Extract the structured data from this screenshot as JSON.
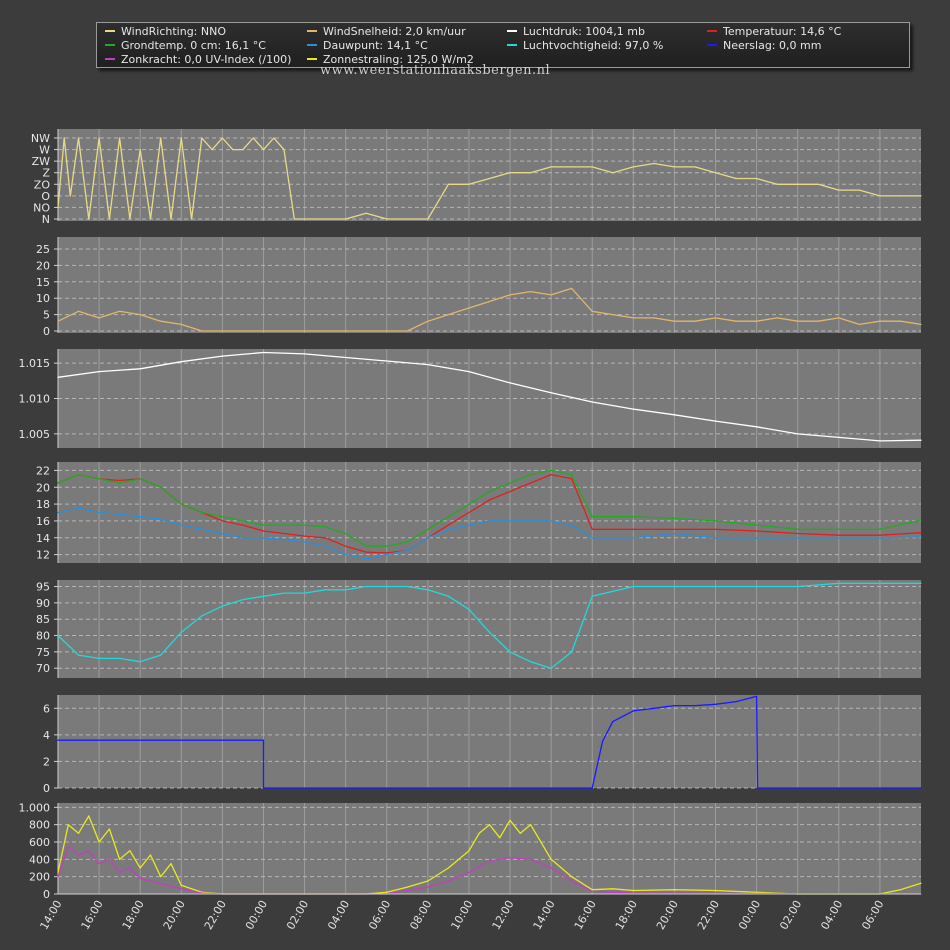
{
  "legend": {
    "items": [
      {
        "label": "WindRichting: NNO",
        "color": "#e8d98a"
      },
      {
        "label": "WindSnelheid: 2,0 km/uur",
        "color": "#e3b56a"
      },
      {
        "label": "Luchtdruk: 1004,1 mb",
        "color": "#ffffff"
      },
      {
        "label": "Temperatuur: 14,6 °C",
        "color": "#e02020"
      },
      {
        "label": "Grondtemp. 0 cm: 16,1 °C",
        "color": "#22aa22"
      },
      {
        "label": "Dauwpunt: 14,1 °C",
        "color": "#2a8fd8"
      },
      {
        "label": "Luchtvochtigheid: 97,0 %",
        "color": "#22d8d8"
      },
      {
        "label": "Neerslag: 0,0 mm",
        "color": "#1a1aff"
      },
      {
        "label": "Zonkracht: 0,0 UV-Index (/100)",
        "color": "#c040c0"
      },
      {
        "label": "Zonnestraling: 125,0 W/m2",
        "color": "#e8e820"
      }
    ]
  },
  "site_url": "www.weerstationhaaksbergen.nl",
  "chart_data": {
    "type": "line",
    "x_hours_from": 14,
    "x_span_hours": 42,
    "x_tick_labels": [
      "14:00",
      "16:00",
      "18:00",
      "20:00",
      "22:00",
      "00:00",
      "02:00",
      "04:00",
      "06:00",
      "08:00",
      "10:00",
      "12:00",
      "14:00",
      "16:00",
      "18:00",
      "20:00",
      "22:00",
      "00:00",
      "02:00",
      "04:00",
      "06:00"
    ],
    "panels": [
      {
        "name": "wind-direction",
        "ticks": [
          "NW",
          "W",
          "ZW",
          "Z",
          "ZO",
          "O",
          "NO",
          "N"
        ],
        "ylim": [
          0,
          7
        ],
        "series": [
          {
            "name": "WindRichting",
            "color": "#e8d98a",
            "x": [
              0,
              0.3,
              0.6,
              1,
              1.5,
              2,
              2.5,
              3,
              3.5,
              4,
              4.5,
              5,
              5.5,
              6,
              6.5,
              7,
              7.5,
              8,
              8.5,
              9,
              9.5,
              10,
              10.5,
              11,
              11.5,
              12,
              13,
              14,
              15,
              16,
              17,
              18,
              19,
              20,
              21,
              22,
              23,
              24,
              25,
              26,
              27,
              28,
              29,
              30,
              31,
              32,
              33,
              34,
              35,
              36,
              37,
              38,
              39,
              40,
              41,
              42
            ],
            "y": [
              1,
              7,
              2,
              7,
              0,
              7,
              0,
              7,
              0,
              6,
              0,
              7,
              0,
              7,
              0,
              7,
              6,
              7,
              6,
              6,
              7,
              6,
              7,
              6,
              0,
              0,
              0,
              0,
              0.5,
              0,
              0,
              0,
              3,
              3,
              3.5,
              4,
              4,
              4.5,
              4.5,
              4.5,
              4,
              4.5,
              4.8,
              4.5,
              4.5,
              4,
              3.5,
              3.5,
              3,
              3,
              3,
              2.5,
              2.5,
              2,
              2,
              2
            ]
          }
        ]
      },
      {
        "name": "wind-speed",
        "ticks": [
          "0",
          "5",
          "10",
          "15",
          "20",
          "25"
        ],
        "ylim": [
          0,
          25
        ],
        "series": [
          {
            "name": "WindSnelheid",
            "color": "#e3b56a",
            "x": [
              0,
              1,
              2,
              3,
              4,
              5,
              6,
              7,
              8,
              9,
              10,
              11,
              12,
              13,
              14,
              15,
              16,
              17,
              18,
              19,
              20,
              21,
              22,
              23,
              24,
              25,
              26,
              27,
              28,
              29,
              30,
              31,
              32,
              33,
              34,
              35,
              36,
              37,
              38,
              39,
              40,
              41,
              42
            ],
            "y": [
              3,
              6,
              4,
              6,
              5,
              3,
              2,
              0,
              0,
              0,
              0,
              0,
              0,
              0,
              0,
              0,
              0,
              0,
              3,
              5,
              7,
              9,
              11,
              12,
              11,
              13,
              6,
              5,
              4,
              4,
              3,
              3,
              4,
              3,
              3,
              4,
              3,
              3,
              4,
              2,
              3,
              3,
              2
            ]
          }
        ]
      },
      {
        "name": "pressure",
        "ticks": [
          "1.005",
          "1.010",
          "1.015"
        ],
        "ylim": [
          1.003,
          1.017
        ],
        "series": [
          {
            "name": "Luchtdruk",
            "color": "#ffffff",
            "x": [
              0,
              2,
              4,
              6,
              8,
              10,
              12,
              14,
              16,
              18,
              20,
              22,
              24,
              26,
              28,
              30,
              32,
              34,
              36,
              38,
              40,
              42
            ],
            "y": [
              1.013,
              1.0138,
              1.0142,
              1.0152,
              1.016,
              1.0165,
              1.0163,
              1.0158,
              1.0153,
              1.0148,
              1.0138,
              1.0122,
              1.0108,
              1.0095,
              1.0085,
              1.0077,
              1.0068,
              1.006,
              1.005,
              1.0045,
              1.004,
              1.0041
            ]
          }
        ]
      },
      {
        "name": "temperature",
        "ticks": [
          "12",
          "14",
          "16",
          "18",
          "20",
          "22"
        ],
        "ylim": [
          11,
          23
        ],
        "series": [
          {
            "name": "Temperatuur",
            "color": "#e02020",
            "x": [
              0,
              1,
              2,
              3,
              4,
              5,
              6,
              7,
              8,
              9,
              10,
              11,
              12,
              13,
              14,
              15,
              16,
              17,
              18,
              19,
              20,
              21,
              22,
              23,
              24,
              25,
              26,
              28,
              30,
              32,
              34,
              36,
              38,
              40,
              42
            ],
            "y": [
              20.5,
              21.5,
              21,
              20.8,
              21,
              20,
              18,
              17,
              16,
              15.5,
              14.8,
              14.5,
              14.2,
              14,
              13,
              12.3,
              12.2,
              12.5,
              14,
              15.5,
              17,
              18.5,
              19.5,
              20.5,
              21.5,
              21,
              15,
              15,
              15,
              15,
              14.8,
              14.5,
              14.3,
              14.3,
              14.6
            ]
          },
          {
            "name": "Grondtemp",
            "color": "#22aa22",
            "x": [
              0,
              1,
              2,
              3,
              4,
              5,
              6,
              7,
              8,
              9,
              10,
              11,
              12,
              13,
              14,
              15,
              16,
              17,
              18,
              19,
              20,
              21,
              22,
              23,
              24,
              25,
              26,
              28,
              30,
              32,
              34,
              36,
              38,
              40,
              42
            ],
            "y": [
              20.5,
              21.5,
              21,
              20.5,
              21,
              20,
              18,
              17,
              16.5,
              16,
              15.5,
              15.5,
              15.5,
              15.3,
              14.5,
              13,
              13,
              13.5,
              15,
              16.5,
              18,
              19.5,
              20.5,
              21.5,
              22,
              21.5,
              16.5,
              16.5,
              16.3,
              16,
              15.5,
              15,
              15,
              15,
              16.1
            ]
          },
          {
            "name": "Dauwpunt",
            "color": "#2a8fd8",
            "x": [
              0,
              1,
              2,
              3,
              4,
              5,
              6,
              7,
              8,
              9,
              10,
              11,
              12,
              13,
              14,
              15,
              16,
              17,
              18,
              19,
              20,
              21,
              22,
              23,
              24,
              25,
              26,
              28,
              30,
              32,
              34,
              36,
              38,
              40,
              42
            ],
            "y": [
              17,
              17.5,
              17,
              16.8,
              16.5,
              16.2,
              15.5,
              15,
              14.5,
              14,
              14,
              13.8,
              13.5,
              13,
              12,
              11.5,
              12,
              12.5,
              14,
              15,
              15.5,
              16,
              16,
              16,
              16,
              15.5,
              14,
              14,
              14.5,
              14,
              14,
              14,
              14,
              14,
              14.1
            ]
          }
        ]
      },
      {
        "name": "humidity",
        "ticks": [
          "70",
          "75",
          "80",
          "85",
          "90",
          "95"
        ],
        "ylim": [
          67,
          97
        ],
        "series": [
          {
            "name": "Luchtvochtigheid",
            "color": "#22d8d8",
            "x": [
              0,
              1,
              2,
              3,
              4,
              5,
              6,
              7,
              8,
              9,
              10,
              11,
              12,
              13,
              14,
              15,
              16,
              17,
              18,
              19,
              20,
              21,
              22,
              23,
              24,
              25,
              26,
              28,
              30,
              32,
              34,
              36,
              38,
              40,
              42
            ],
            "y": [
              80,
              74,
              73,
              73,
              72,
              74,
              81,
              86,
              89,
              91,
              92,
              93,
              93,
              94,
              94,
              95,
              95,
              95,
              94,
              92,
              88,
              81,
              75,
              72,
              70,
              75,
              92,
              95,
              95,
              95,
              95,
              95,
              96,
              96,
              96
            ]
          }
        ]
      },
      {
        "name": "rain",
        "ticks": [
          "0",
          "2",
          "4",
          "6"
        ],
        "ylim": [
          0,
          7
        ],
        "series": [
          {
            "name": "Neerslag",
            "color": "#1a1aff",
            "x": [
              0,
              10,
              10,
              26,
              26,
              26.5,
              27,
              28,
              29,
              30,
              31,
              32,
              33,
              33.5,
              34,
              34.05,
              42
            ],
            "y": [
              3.6,
              3.6,
              0,
              0,
              0,
              3.5,
              5,
              5.8,
              6,
              6.2,
              6.2,
              6.3,
              6.5,
              6.7,
              6.9,
              0,
              0
            ]
          }
        ]
      },
      {
        "name": "solar",
        "ticks": [
          "0",
          "200",
          "400",
          "600",
          "800",
          "1.000"
        ],
        "ylim": [
          0,
          1050
        ],
        "series": [
          {
            "name": "Zonnestraling",
            "color": "#e8e820",
            "x": [
              0,
              0.5,
              1,
              1.5,
              2,
              2.5,
              3,
              3.5,
              4,
              4.5,
              5,
              5.5,
              6,
              7,
              8,
              10,
              12,
              14,
              15,
              16,
              17,
              18,
              19,
              20,
              20.5,
              21,
              21.5,
              22,
              22.5,
              23,
              23.5,
              24,
              25,
              26,
              27,
              28,
              30,
              32,
              34,
              36,
              38,
              40,
              41,
              42
            ],
            "y": [
              250,
              800,
              700,
              900,
              600,
              750,
              400,
              500,
              300,
              450,
              200,
              350,
              100,
              20,
              0,
              0,
              0,
              0,
              0,
              20,
              80,
              150,
              300,
              500,
              700,
              800,
              650,
              850,
              700,
              800,
              600,
              400,
              200,
              50,
              60,
              40,
              50,
              40,
              20,
              0,
              0,
              0,
              50,
              125
            ]
          },
          {
            "name": "Zonkracht",
            "color": "#c040c0",
            "x": [
              0,
              0.5,
              1,
              1.5,
              2,
              2.5,
              3,
              3.5,
              4,
              5,
              6,
              7,
              8,
              10,
              16,
              17,
              18,
              19,
              20,
              21,
              22,
              23,
              24,
              25,
              26,
              27,
              28,
              42
            ],
            "y": [
              200,
              550,
              450,
              500,
              350,
              400,
              250,
              300,
              180,
              120,
              60,
              10,
              0,
              0,
              0,
              40,
              80,
              150,
              250,
              380,
              420,
              400,
              300,
              150,
              30,
              20,
              10,
              0
            ]
          }
        ]
      }
    ]
  }
}
